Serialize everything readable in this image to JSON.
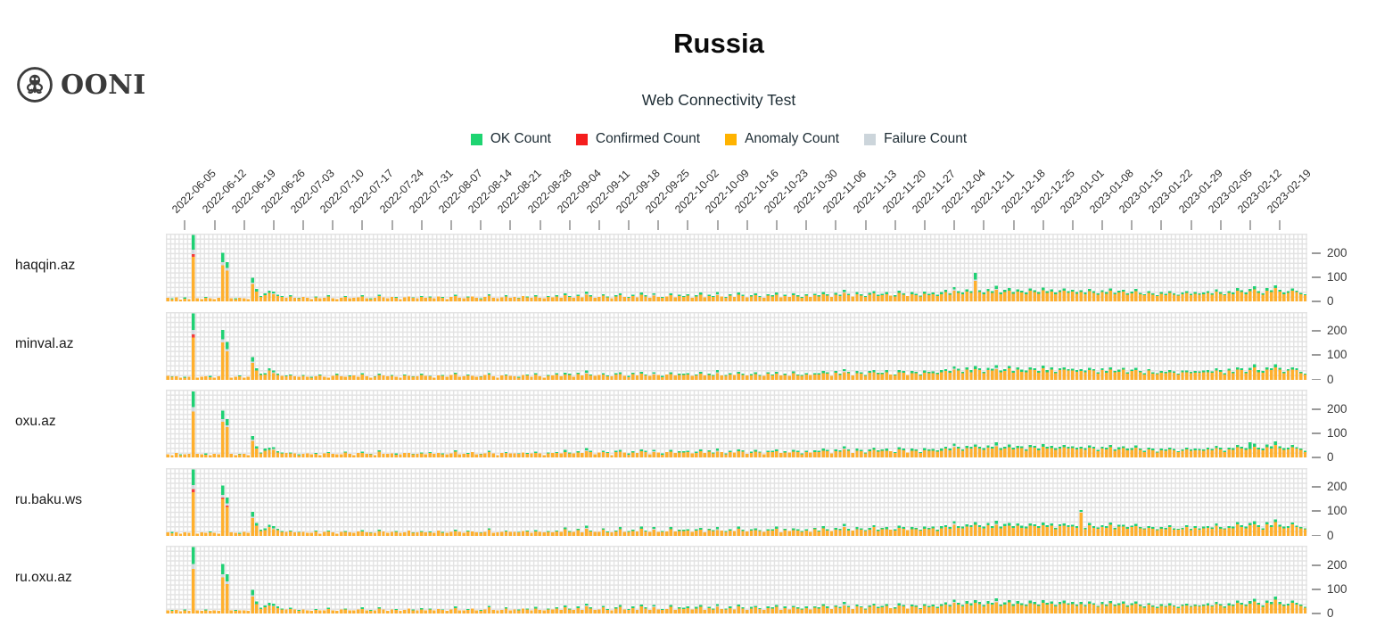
{
  "header": {
    "title": "Russia",
    "subtitle": "Web Connectivity Test"
  },
  "logo": {
    "text": "OONI",
    "icon": "ooni-octopus-icon"
  },
  "legend": [
    {
      "key": "ok",
      "label": "OK Count",
      "color": "#1ed471"
    },
    {
      "key": "confirmed",
      "label": "Confirmed Count",
      "color": "#f51d1d"
    },
    {
      "key": "anomaly",
      "label": "Anomaly Count",
      "color": "#ffb300"
    },
    {
      "key": "failure",
      "label": "Failure Count",
      "color": "#ccd5db"
    }
  ],
  "colors": {
    "ok": "#20d174",
    "confirmed": "#f43c3c",
    "anomaly": "#ffb02e",
    "failure": "#d2d9de",
    "grid": "#e3e3e3",
    "tick": "#ababab"
  },
  "chart_data": {
    "type": "bar",
    "stacked": true,
    "title": "Russia",
    "subtitle": "Web Connectivity Test",
    "legend_position": "top",
    "grid": true,
    "sites": [
      "haqqin.az",
      "minval.az",
      "oxu.az",
      "ru.baku.ws",
      "ru.oxu.az"
    ],
    "x_start_date": "2022-06-01",
    "days_total": 270,
    "x_first_tick_day_index": 4,
    "x_tick_interval_days": 7,
    "x_tick_labels": [
      "2022-06-05",
      "2022-06-12",
      "2022-06-19",
      "2022-06-26",
      "2022-07-03",
      "2022-07-10",
      "2022-07-17",
      "2022-07-24",
      "2022-07-31",
      "2022-08-07",
      "2022-08-14",
      "2022-08-21",
      "2022-08-28",
      "2022-09-04",
      "2022-09-11",
      "2022-09-18",
      "2022-09-25",
      "2022-10-02",
      "2022-10-09",
      "2022-10-16",
      "2022-10-23",
      "2022-10-30",
      "2022-11-06",
      "2022-11-13",
      "2022-11-20",
      "2022-11-27",
      "2022-12-04",
      "2022-12-11",
      "2022-12-18",
      "2022-12-25",
      "2023-01-01",
      "2023-01-08",
      "2023-01-15",
      "2023-01-22",
      "2023-01-29",
      "2023-02-05",
      "2023-02-12",
      "2023-02-19"
    ],
    "yticks": [
      0,
      100,
      200
    ],
    "ylim": [
      0,
      280
    ],
    "value_encoding": "anomaly,ok,confirmed,failure",
    "rows": [
      {
        "site": "haqqin.az",
        "days": "14;10,3;16;8;12,4;10;185,62,10,18;12;10;14,4;12;10;14;150,38,0,12;128,25,0,10;12;10,3;14;12;10;72,20,0,6;40,12;18,5;25,8;35,10;30,8,0,3;22,6;18,4;15;20,5;15;12,3;18;14;10;16,4;12;14;20,5;12;10;15;18,4;12;14;16;20,6;12;10,3;14;22,5;16;12;18;14,4;10;16;20;14,3;12;18,5;14;16,4;12;20;15,3;10;18;22,6;14;12;16,4;20;14;10,3;18;24,6;15;12;16;20,5;14;18;12,3;22;16,4;14;20,6;15;12;18,4;16;20,5;15;25,8;18,4;14;22,6;16;28,8,0,4;20,5;15;18;24,6;16,4;12;20,5;26,8;18;14,4;22,6;16;28,8;20,5;15;24,6,0,4;18;14,4;20;26,8;16;22,5;18,5;24,6;15;20,6;28,8;16;22,5;18,4;26,8,0,4;20;15,4;24,6;18;28,8;22,5;16;20,6;26,7;18,4;15;24,6;20,5;28,8;16;22,6;18;26,7;20,5;15,4;24,6;18;25,6;20,5;30,8;24,6;18;28,7;22,5;35,9,0,4;25,6;20;30,8;24,5;18,4;28,7;34,8;22,5;26,6;30,8;24;20,5;35,9;28,6;22;30,8;26,6;20,4;32,8;25,6;30,7;22,5;30,8;38,9;28,6;45,10,0,4;35,8;30,6;40,10;35,8;85,28,0,5;38,8;30,6;42,10;35,8;48,12,0,4;30,6;38,9;45,10;32,7;40,10;36,8;30,6;44,10;38,8;32,6;46,11;35,8;40,9;30,6;38,8;44,10;35,7;40,8;32,6;38,8;30,6;42,9;35,7;28,5;38,8;32,6;44,9;30,5;36,8;40,8;28,6;34,7;42,9;30,5;25,5;35,7;28,6;22,4;32,7;26,5;35,8;28,5;24,4;30,6;35,7;26,5;32,6;28,5;30,6;35,8;28,5;40,9;32,6;25,5;35,8;30,6;45,10;38,8;30,6;42,10;50,12;35,8;28,6;45,10;38,8;55,12;40,8;30,6;35,7;45,9;38,7;30,5;25,4"
      },
      {
        "site": "minval.az",
        "days": "16;12,3;14;10;10,3;12;175,68,12,20;10;12;14;12,4;10;15;155,40,0,12;118,28,0,10;10;12;14,4;10;12;70,18,0,6;38,10;20,6;22,6;38,10;28,8,0,3;20,5;16;14,4;18,5;14;12;16,4;12;10,3;14;18,5;12;10;16;20,5;14;12;15,4;18;12;22,6;14;10;12,3;20,5;18;14;16,4;12;10;18,5;16;12,3;14;20,6;16;14,3;10;18;16,4;12;20;24,6;12;14;18,4;16;12;12,3;20;22,6;14;10;18;18,5;16;14;10,3;20;18,4;12;22,6;14;10;16,4;18;22,6;14;22,7;20,5;12;24,6;18;26,8,0,4;18,5;16;20;22,6;14,4;14;22,5;24,8;16;12,4;24,6;18;26,7;18,5;16;22,6,0,4;20;12,4;22;24,7;18;20,5;20,5;22,6;16;18,5;26,8;18;20,5;16,4;28,8,0,4;18;16,4;22,6;20;26,7;20,5;18;18,6;24,7;16,4;16;26,6;18,5;26,8;18;20,6;16;28,7;18,5;16,4;22,6;20;22,6;22,5;28,8;26,6;16;30,7;20,5;32,9,0,4;28,6;18;28,8;26,5;16,4;30,7;32,8;24,5;24,6;32,8;22;18,5;32,9;30,6;20;28,8;28,6;18,4;30,8;28,6;28,7;24,5;32,8;36,9;30,6;42,10,0,4;38,8;28,6;42,10;32,8;45,12;40,8;28,6;40,10;38,8;45,12,0,4;32,6;36,9;48,10;30,7;42,10;34,8;32,6;42,10;40,8;30,6;48,11;32,8;42,9;28,6;40,8;42,10;38,7;38,8;34,6;36,8;32,6;40,9;38,7;26,5;40,8;30,6;42,9;32,5;34,8;42,8;26,6;36,7;40,9;32,5;22,5;38,7;26,6;24,4;30,7;28,5;32,8;30,5;22,4;32,6;32,7;28,5;30,6;30,5;32,6;32,8;30,5;38,9;34,6;22,5;38,8;28,6;42,10;40,8;28,6;40,9;52,12;32,8;30,6;42,10;40,8;52,12;42,8;28,6;38,7;42,9;40,7;28,5;22,4"
      },
      {
        "site": "oxu.az",
        "days": "12;10;18;10,3;12;14;190,65,0,18;14;12;12,4;10;14;12;148,36,0,10;125,26,0,8;14;10;12,3;14;10;68,16,0,5;36,10;16,4;28,8;32,9;32,8,0,3;20,6;16,4;18;16,4;16;10,3;14;16;12;14,4;10;16;18,5;14;12;12;20,4;14;10;18;18,6;14;12,3;10;24,5;14;14;16;12,4;12;18;18;12,3;14;16,5;12;18,4;14;18;13,3;12;16;24,6;12;14;14,4;22;12;12,3;16;22,6;17;10;18;18,5;16;16;14,3;20;14,4;16;18,6;17;10;16,4;18;18,5;17;23,8;16,4;16;20,6;18;26,8,0,4;22,5;13;20;22,6;18,4;10;22,5;24,8;20;12,4;20,6;18;26,8;22,5;13;22,6,0,4;20;12,4;22;24,8;18;20,5;20,5;22,6;17;18,6;26,8;18;24,5;16,4;24,8,0,4;22;13,4;22,6;20;26,8;24,5;14;18,6;24,7;20,4;13;22,6;22,5;26,8;18;20,6;20;24,7;22,5;13,4;22,6;20;23,6;22,5;28,8;26,6;16;26,7;24,5;33,9,0,4;27,6;18;28,8;26,5;16,4;26,7;32,8;24,5;28,6;28,8;26;18,5;33,9;30,6;20;28,8;28,6;18,4;30,8;27,6;28,7;24,5;28,8;36,9;30,6;43,10,0,4;37,8;28,6;38,10;37,8;44,10;36,8;32,6;40,10;37,8;46,12,0,4;32,6;36,9;43,10;34,7;38,10;38,8;28,6;42,10;40,8;30,6;44,11;37,8;38,9;32,6;36,8;42,10;37,7;38,8;34,6;36,8;32,6;40,9;37,7;26,5;36,8;34,6;42,9;28,5;34,8;38,8;30,6;32,7;40,9;32,5;23,5;33,7;30,6;20,4;30,7;28,5;33,8;30,5;22,4;28,6;33,7;28,5;30,6;30,5;28,6;33,8;30,5;38,9;34,6;23,5;33,8;32,6;42,10;36,8;32,6;35,28;45,12;33,8;30,6;42,12;36,10;52,14;38,8;32,6;33,7;42,9;36,7;32,5;23,4"
      },
      {
        "site": "ru.baku.ws",
        "days": "15;12,4;14;10;14;12;180,65,14,16;10;14;12;14,4;12;10;152,38,6,12;120,24,5,10;14;12;10,3;16;12;74,20,0,6;42,12;20,5;24,8;36,10;28,9,0,3;24,6;16,4;17;18,5;14;14,3;16;12;12;18,4;10;16;18,5;14;10;17;16,4;14;12;18;18,6;14;12,3;12;20,5;18;12;16;16,4;12;14;22;12,3;14;16,5;15;14,4;12;22;13,3;12;16;20,6;16;12;18,4;18;14;12,3;16;26,6;13;14;16;18,5;16;16;14,3;20;18,4;12;18,6;17;14;16,4;14;18,5;17;27,8;16,4;16;24,6;14;30,8,0,4;18,5;17;16;26,6;14,4;14;18,5;28,8;16;16,4;20,6;18;30,8;18,5;17;26,6,0,4;16;16,4;18;28,8;18;20,5;20,5;22,6;17;22,6;26,8;14;24,5;20,4;24,8,0,4;22;17,4;22,6;20;30,8;20,5;18;22,6;24,7;20,4;17;22,6;22,5;30,8;14;24,6;20;24,7;22,5;17,4;22,6;16;27,6;18,5;32,8;22,6;20;26,7;24,5;37,9,0,4;23,6;22;28,8;26,5;20,4;26,7;36,8;20,5;28,6;28,8;26;22,5;33,9;30,6;24;28,8;28,6;22,4;30,8;27,6;32,7;20,5;32,8;36,9;30,6;47,10,0,4;33,8;32,6;38,10;37,8;46,11;36,8;32,6;44,10;33,8;46,12,0,4;32,6;40,9;43,10;34,7;42,10;34,8;32,6;42,10;40,8;34,6;44,11;37,8;42,9;28,6;40,8;42,10;37,7;38,8;34,6;95,8,0,4;28,6;44,9;33,7;30,5;36,8;34,6;46,9;28,5;38,8;38,8;30,6;36,7;40,9;32,5;27,5;33,7;30,6;24,4;30,7;28,5;37,8;26,5;26,4;28,6;37,7;24,5;34,6;26,5;32,6;33,8;30,5;42,9;30,6;27,5;33,8;32,6;47,10;36,8;32,6;44,10;48,12;37,8;26,6;47,10;36,8;57,12;38,8;32,6;33,7;47,9;36,7;32,5;27,4"
      },
      {
        "site": "ru.oxu.az",
        "days": "13;11,3;15;9;13,4;11;185,70,0,20;13;11;13,4;11;13;11;150,42,0,12;122,30,0,10;13;11,3;13;13;11;70,22,0,6;38,12;19,5;26,8;34,10;29,8,0,3;23,6;17,4;16;19,5;16;11,3;17;13;11;15,4;13;13;19,5;13;11;16;17,4;13;13;17;19,6;13;11,3;13;21,5;17;11;17;15,4;11;15;21;13,3;13;17,5;13;17,4;13;19;14,3;11;17;23,6;13;13;15,4;21;13;11,3;17;25,6;14;13;15;21,5;13;17;13,3;21;17,4;13;21,6;14;13;17,4;17;21,5;14;26,8;17,4;15;23,6;15;29,8,0,4;21,5;14;17;25,6;15,4;13;21,5;27,8;17;15,4;23,6;15;29,8;21,5;14;25,6,0,4;17;15,4;19;27,8;15;21,5;19,5;23,6;16;21,6;27,8;15;23,5;17,4;27,8,0,4;19;16,4;23,6;17;29,8;21,5;15;21,6;25,7;19,4;14;23,6;21,5;27,8;15;23,6;17;25,7;21,5;16,4;23,6;17;24,6;21,5;31,8;23,6;19;27,7;23,5;34,9,0,4;26,6;19;29,8;25,5;17,4;27,7;33,8;23,5;25,6;31,8;23;21,5;34,9;29,6;21;29,8;27,6;19,4;31,8;26,6;29,7;23,5;31,8;37,9;29,6;44,10,0,4;36,8;29,6;41,10;34,8;45,11;39,8;29,6;41,10;36,8;47,12,0,4;31,6;37,9;46,10;31,7;41,10;35,8;31,6;43,10;39,8;31,6;45,11;36,8;41,9;29,6;39,8;43,10;36,7;39,8;31,6;39,8;29,6;41,9;36,7;27,5;39,8;31,6;43,9;31,5;35,8;41,8;27,6;35,7;41,9;31,5;24,5;36,7;27,6;23,4;31,7;27,5;34,8;29,5;23,4;31,6;34,7;27,5;31,6;29,5;31,6;34,8;29,5;39,9;33,6;24,5;34,8;31,6;44,10;37,8;31,6;41,10;49,12;36,8;27,6;44,10;39,8;58,12;39,8;31,6;34,7;44,9;37,7;31,5;24,4"
      }
    ]
  }
}
